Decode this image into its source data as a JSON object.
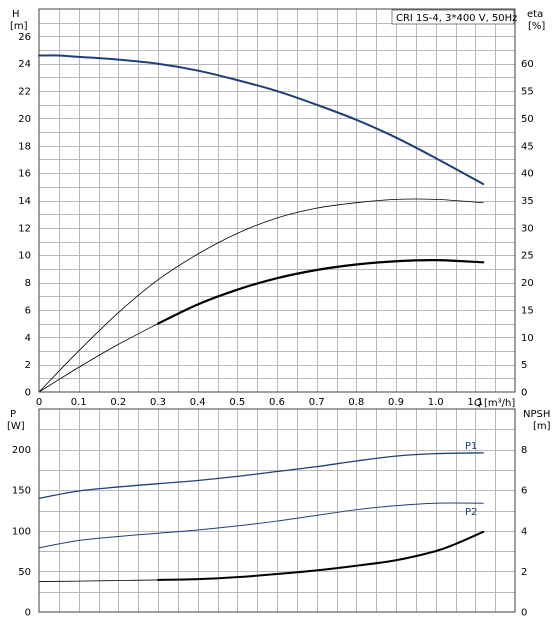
{
  "chart_data": [
    {
      "type": "line",
      "info_box": "CRI 1S-4, 3*400 V, 50Hz",
      "ylabel": "H",
      "yunit": "[m]",
      "y2label": "eta",
      "y2unit": "[%]",
      "xlabel": "Q",
      "xunit": "[m³/h]",
      "xlim": [
        0,
        1.2
      ],
      "ylim": [
        0,
        28
      ],
      "y2lim": [
        0,
        70
      ],
      "x_ticks": [
        "0",
        "0.1",
        "0.2",
        "0.3",
        "0.4",
        "0.5",
        "0.6",
        "0.7",
        "0.8",
        "0.9",
        "1.0",
        "1.1"
      ],
      "y_ticks": [
        "0",
        "2",
        "4",
        "6",
        "8",
        "10",
        "12",
        "14",
        "16",
        "18",
        "20",
        "22",
        "24",
        "26"
      ],
      "y2_ticks": [
        "0",
        "5",
        "10",
        "15",
        "20",
        "25",
        "30",
        "35",
        "40",
        "45",
        "50",
        "55",
        "60"
      ],
      "grid": true,
      "series": [
        {
          "axis": "left",
          "color": "#1f3f7a",
          "width": 2,
          "x": [
            0,
            0.05,
            0.1,
            0.2,
            0.3,
            0.4,
            0.5,
            0.6,
            0.7,
            0.8,
            0.9,
            1.0,
            1.12
          ],
          "y": [
            24.6,
            24.6,
            24.5,
            24.3,
            24.0,
            23.5,
            22.8,
            22.0,
            21.0,
            19.9,
            18.6,
            17.1,
            15.2
          ]
        },
        {
          "axis": "right",
          "color": "#000000",
          "width": 0.8,
          "x": [
            0,
            0.1,
            0.2,
            0.3,
            0.4,
            0.5,
            0.6,
            0.7,
            0.8,
            0.9,
            1.0,
            1.12
          ],
          "y": [
            0,
            7.5,
            14.5,
            20.5,
            25.2,
            29.0,
            31.8,
            33.6,
            34.6,
            35.2,
            35.2,
            34.6
          ]
        },
        {
          "axis": "right",
          "color": "#000000",
          "width": 0.8,
          "x": [
            0,
            0.1,
            0.2,
            0.3
          ],
          "y": [
            0,
            4.5,
            8.7,
            12.5
          ]
        },
        {
          "axis": "right",
          "color": "#000000",
          "width": 2.2,
          "x": [
            0.3,
            0.4,
            0.5,
            0.6,
            0.7,
            0.8,
            0.9,
            1.0,
            1.12
          ],
          "y": [
            12.5,
            16.0,
            18.7,
            20.8,
            22.3,
            23.3,
            23.9,
            24.1,
            23.7
          ]
        }
      ]
    },
    {
      "type": "line",
      "ylabel": "P",
      "yunit": "[W]",
      "y2label": "NPSH",
      "y2unit": "[m]",
      "xlim": [
        0,
        1.2
      ],
      "ylim": [
        0,
        250
      ],
      "y2lim": [
        0,
        10
      ],
      "y_ticks": [
        "0",
        "50",
        "100",
        "150",
        "200"
      ],
      "y2_ticks": [
        "0",
        "2",
        "4",
        "6",
        "8"
      ],
      "grid": true,
      "series": [
        {
          "name": "P1",
          "axis": "left",
          "color": "#1f3f7a",
          "width": 1.3,
          "x": [
            0,
            0.1,
            0.2,
            0.3,
            0.4,
            0.5,
            0.6,
            0.7,
            0.8,
            0.9,
            1.0,
            1.12
          ],
          "y": [
            140,
            149,
            154,
            158,
            162,
            167,
            173,
            179,
            186,
            192,
            195,
            196
          ]
        },
        {
          "name": "P2",
          "axis": "left",
          "color": "#1f3f7a",
          "width": 1,
          "x": [
            0,
            0.1,
            0.2,
            0.3,
            0.4,
            0.5,
            0.6,
            0.7,
            0.8,
            0.9,
            1.0,
            1.12
          ],
          "y": [
            79,
            88,
            93,
            97,
            101,
            106,
            112,
            119,
            126,
            131,
            134,
            134
          ]
        },
        {
          "axis": "right",
          "color": "#000000",
          "width": 0.8,
          "x": [
            0,
            0.1,
            0.2,
            0.3
          ],
          "y": [
            1.5,
            1.52,
            1.55,
            1.58
          ]
        },
        {
          "axis": "right",
          "color": "#000000",
          "width": 2,
          "x": [
            0.3,
            0.4,
            0.5,
            0.6,
            0.7,
            0.8,
            0.9,
            1.0,
            1.05,
            1.12
          ],
          "y": [
            1.58,
            1.62,
            1.72,
            1.87,
            2.05,
            2.28,
            2.55,
            3.0,
            3.35,
            3.95
          ]
        }
      ]
    }
  ]
}
